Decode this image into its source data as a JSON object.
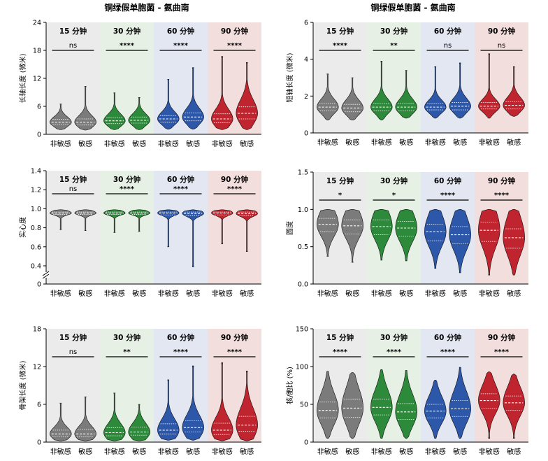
{
  "titles": {
    "left": "铜绿假单胞菌 - 氨曲南",
    "right": "铜绿假单胞菌 - 氨曲南"
  },
  "chart_data": [
    {
      "type": "violin",
      "ylabel": "长轴长度 (微米)",
      "ylim": [
        0,
        24
      ],
      "yticks": [
        "0",
        "6",
        "12",
        "18",
        "24"
      ],
      "groups": [
        "15 分钟",
        "30 分钟",
        "60 分钟",
        "90 分钟"
      ],
      "categories": [
        "非敏感",
        "敏感"
      ],
      "significance": [
        "ns",
        "****",
        "****",
        "****"
      ],
      "violins": [
        {
          "min": 1.0,
          "max": 6.5,
          "median": 2.6,
          "q1": 2.1,
          "q3": 3.2
        },
        {
          "min": 0.9,
          "max": 10.3,
          "median": 2.6,
          "q1": 2.0,
          "q3": 3.3
        },
        {
          "min": 1.0,
          "max": 8.9,
          "median": 2.9,
          "q1": 2.3,
          "q3": 3.6
        },
        {
          "min": 1.0,
          "max": 7.9,
          "median": 3.0,
          "q1": 2.4,
          "q3": 3.7
        },
        {
          "min": 1.1,
          "max": 11.8,
          "median": 3.3,
          "q1": 2.6,
          "q3": 4.0
        },
        {
          "min": 1.1,
          "max": 14.3,
          "median": 3.7,
          "q1": 2.9,
          "q3": 4.6
        },
        {
          "min": 1.0,
          "max": 16.7,
          "median": 3.3,
          "q1": 2.5,
          "q3": 4.4
        },
        {
          "min": 1.0,
          "max": 15.4,
          "median": 4.5,
          "q1": 3.3,
          "q3": 5.9
        }
      ]
    },
    {
      "type": "violin",
      "ylabel": "短轴长度 (微米)",
      "ylim": [
        0,
        6
      ],
      "yticks": [
        "0",
        "2",
        "4",
        "6"
      ],
      "groups": [
        "15 分钟",
        "30 分钟",
        "60 分钟",
        "90 分钟"
      ],
      "categories": [
        "非敏感",
        "敏感"
      ],
      "significance": [
        "****",
        "**",
        "ns",
        "ns"
      ],
      "violins": [
        {
          "min": 0.7,
          "max": 3.2,
          "median": 1.4,
          "q1": 1.2,
          "q3": 1.6
        },
        {
          "min": 0.7,
          "max": 3.0,
          "median": 1.35,
          "q1": 1.15,
          "q3": 1.55
        },
        {
          "min": 0.7,
          "max": 3.9,
          "median": 1.4,
          "q1": 1.2,
          "q3": 1.6
        },
        {
          "min": 0.8,
          "max": 3.4,
          "median": 1.4,
          "q1": 1.2,
          "q3": 1.6
        },
        {
          "min": 0.8,
          "max": 3.6,
          "median": 1.4,
          "q1": 1.25,
          "q3": 1.6
        },
        {
          "min": 0.8,
          "max": 3.8,
          "median": 1.45,
          "q1": 1.25,
          "q3": 1.65
        },
        {
          "min": 0.8,
          "max": 4.3,
          "median": 1.45,
          "q1": 1.3,
          "q3": 1.65
        },
        {
          "min": 0.9,
          "max": 3.6,
          "median": 1.5,
          "q1": 1.3,
          "q3": 1.7
        }
      ]
    },
    {
      "type": "violin",
      "ylabel": "实心度",
      "ylim": [
        0.4,
        1.4
      ],
      "axis_break": true,
      "yticks": [
        "0",
        "0.4",
        "0.6",
        "0.8",
        "1.0",
        "1.2",
        "1.4"
      ],
      "groups": [
        "15 分钟",
        "30 分钟",
        "60 分钟",
        "90 分钟"
      ],
      "categories": [
        "非敏感",
        "敏感"
      ],
      "significance": [
        "ns",
        "****",
        "****",
        "****"
      ],
      "violins": [
        {
          "min": 0.78,
          "max": 0.99,
          "median": 0.955,
          "q1": 0.94,
          "q3": 0.965
        },
        {
          "min": 0.77,
          "max": 0.99,
          "median": 0.955,
          "q1": 0.94,
          "q3": 0.965
        },
        {
          "min": 0.75,
          "max": 0.99,
          "median": 0.955,
          "q1": 0.94,
          "q3": 0.965
        },
        {
          "min": 0.76,
          "max": 0.99,
          "median": 0.955,
          "q1": 0.94,
          "q3": 0.965
        },
        {
          "min": 0.6,
          "max": 0.99,
          "median": 0.955,
          "q1": 0.935,
          "q3": 0.965
        },
        {
          "min": 0.39,
          "max": 0.99,
          "median": 0.95,
          "q1": 0.93,
          "q3": 0.965
        },
        {
          "min": 0.63,
          "max": 0.99,
          "median": 0.955,
          "q1": 0.935,
          "q3": 0.965
        },
        {
          "min": 0.55,
          "max": 0.99,
          "median": 0.95,
          "q1": 0.93,
          "q3": 0.965
        }
      ]
    },
    {
      "type": "violin",
      "ylabel": "圆度",
      "ylim": [
        0,
        1.5
      ],
      "yticks": [
        "0.0",
        "0.5",
        "1.0",
        "1.5"
      ],
      "groups": [
        "15 分钟",
        "30 分钟",
        "60 分钟",
        "90 分钟"
      ],
      "categories": [
        "非敏感",
        "敏感"
      ],
      "significance": [
        "*",
        "*",
        "****",
        "****"
      ],
      "violins": [
        {
          "min": 0.37,
          "max": 1.0,
          "median": 0.8,
          "q1": 0.7,
          "q3": 0.88
        },
        {
          "min": 0.29,
          "max": 1.0,
          "median": 0.78,
          "q1": 0.67,
          "q3": 0.86
        },
        {
          "min": 0.32,
          "max": 1.0,
          "median": 0.77,
          "q1": 0.66,
          "q3": 0.86
        },
        {
          "min": 0.31,
          "max": 1.0,
          "median": 0.75,
          "q1": 0.64,
          "q3": 0.84
        },
        {
          "min": 0.21,
          "max": 1.0,
          "median": 0.7,
          "q1": 0.58,
          "q3": 0.8
        },
        {
          "min": 0.15,
          "max": 1.0,
          "median": 0.66,
          "q1": 0.54,
          "q3": 0.77
        },
        {
          "min": 0.12,
          "max": 1.0,
          "median": 0.72,
          "q1": 0.57,
          "q3": 0.83
        },
        {
          "min": 0.12,
          "max": 1.0,
          "median": 0.62,
          "q1": 0.48,
          "q3": 0.74
        }
      ]
    },
    {
      "type": "violin",
      "ylabel": "骨架长度 (微米)",
      "ylim": [
        0,
        18
      ],
      "yticks": [
        "0",
        "6",
        "12",
        "18"
      ],
      "groups": [
        "15 分钟",
        "30 分钟",
        "60 分钟",
        "90 分钟"
      ],
      "categories": [
        "非敏感",
        "敏感"
      ],
      "significance": [
        "ns",
        "**",
        "****",
        "****"
      ],
      "violins": [
        {
          "min": 0.2,
          "max": 6.2,
          "median": 1.3,
          "q1": 0.9,
          "q3": 1.9
        },
        {
          "min": 0.2,
          "max": 7.2,
          "median": 1.3,
          "q1": 0.9,
          "q3": 2.0
        },
        {
          "min": 0.2,
          "max": 7.8,
          "median": 1.5,
          "q1": 1.0,
          "q3": 2.3
        },
        {
          "min": 0.2,
          "max": 6.0,
          "median": 1.6,
          "q1": 1.1,
          "q3": 2.4
        },
        {
          "min": 0.3,
          "max": 9.9,
          "median": 1.9,
          "q1": 1.3,
          "q3": 2.9
        },
        {
          "min": 0.3,
          "max": 12.1,
          "median": 2.3,
          "q1": 1.6,
          "q3": 3.4
        },
        {
          "min": 0.2,
          "max": 12.6,
          "median": 1.9,
          "q1": 1.2,
          "q3": 3.0
        },
        {
          "min": 0.2,
          "max": 11.3,
          "median": 2.7,
          "q1": 1.7,
          "q3": 4.1
        }
      ]
    },
    {
      "type": "violin",
      "ylabel": "核/胞比 (%)",
      "ylim": [
        0,
        150
      ],
      "yticks": [
        "0",
        "50",
        "100",
        "150"
      ],
      "groups": [
        "15 分钟",
        "30 分钟",
        "60 分钟",
        "90 分钟"
      ],
      "categories": [
        "非敏感",
        "敏感"
      ],
      "significance": [
        "****",
        "****",
        "****",
        "****"
      ],
      "violins": [
        {
          "min": 5,
          "max": 94,
          "median": 42,
          "q1": 32,
          "q3": 53
        },
        {
          "min": 5,
          "max": 92,
          "median": 45,
          "q1": 33,
          "q3": 57
        },
        {
          "min": 5,
          "max": 96,
          "median": 46,
          "q1": 36,
          "q3": 57
        },
        {
          "min": 5,
          "max": 95,
          "median": 40,
          "q1": 30,
          "q3": 51
        },
        {
          "min": 5,
          "max": 82,
          "median": 41,
          "q1": 32,
          "q3": 50
        },
        {
          "min": 5,
          "max": 99,
          "median": 44,
          "q1": 34,
          "q3": 55
        },
        {
          "min": 5,
          "max": 93,
          "median": 55,
          "q1": 45,
          "q3": 64
        },
        {
          "min": 5,
          "max": 90,
          "median": 52,
          "q1": 42,
          "q3": 61
        }
      ]
    }
  ],
  "colors": {
    "group_bg": [
      "#ebebeb",
      "#e6f0e4",
      "#e2e7f2",
      "#f2dedd"
    ],
    "group_fill": [
      "#7b7b7b",
      "#2c8a3a",
      "#2d57a8",
      "#c0242e"
    ]
  }
}
